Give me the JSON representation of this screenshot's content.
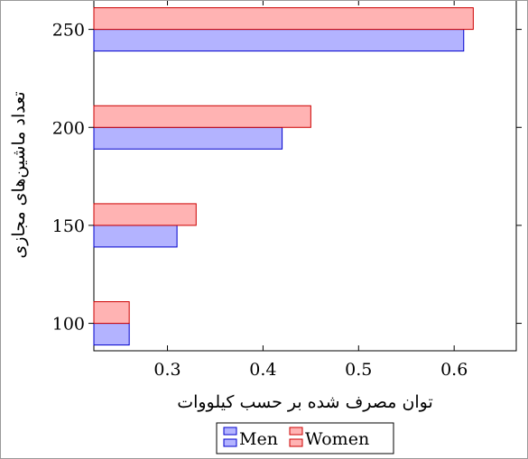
{
  "chart_data": {
    "type": "bar",
    "orientation": "horizontal",
    "title": "",
    "xlabel": "توان مصرف شده بر حسب کیلووات",
    "ylabel": "تعداد ماشین‌های مجازی",
    "categories": [
      100,
      150,
      200,
      250
    ],
    "series": [
      {
        "name": "Men",
        "values": [
          0.26,
          0.31,
          0.42,
          0.61
        ],
        "fill": "#b3b3ff",
        "stroke": "#0000cc"
      },
      {
        "name": "Women",
        "values": [
          0.26,
          0.33,
          0.45,
          0.62
        ],
        "fill": "#ffb3b3",
        "stroke": "#cc0000"
      }
    ],
    "xlim": [
      0.223,
      0.665
    ],
    "ylim": [
      86,
      265
    ],
    "xticks": [
      0.3,
      0.4,
      0.5,
      0.6
    ],
    "xtick_labels": [
      "0.3",
      "0.4",
      "0.5",
      "0.6"
    ],
    "yticks": [
      100,
      150,
      200,
      250
    ],
    "ytick_labels": [
      "100",
      "150",
      "200",
      "250"
    ],
    "grid": false,
    "legend_position": "bottom-center"
  }
}
